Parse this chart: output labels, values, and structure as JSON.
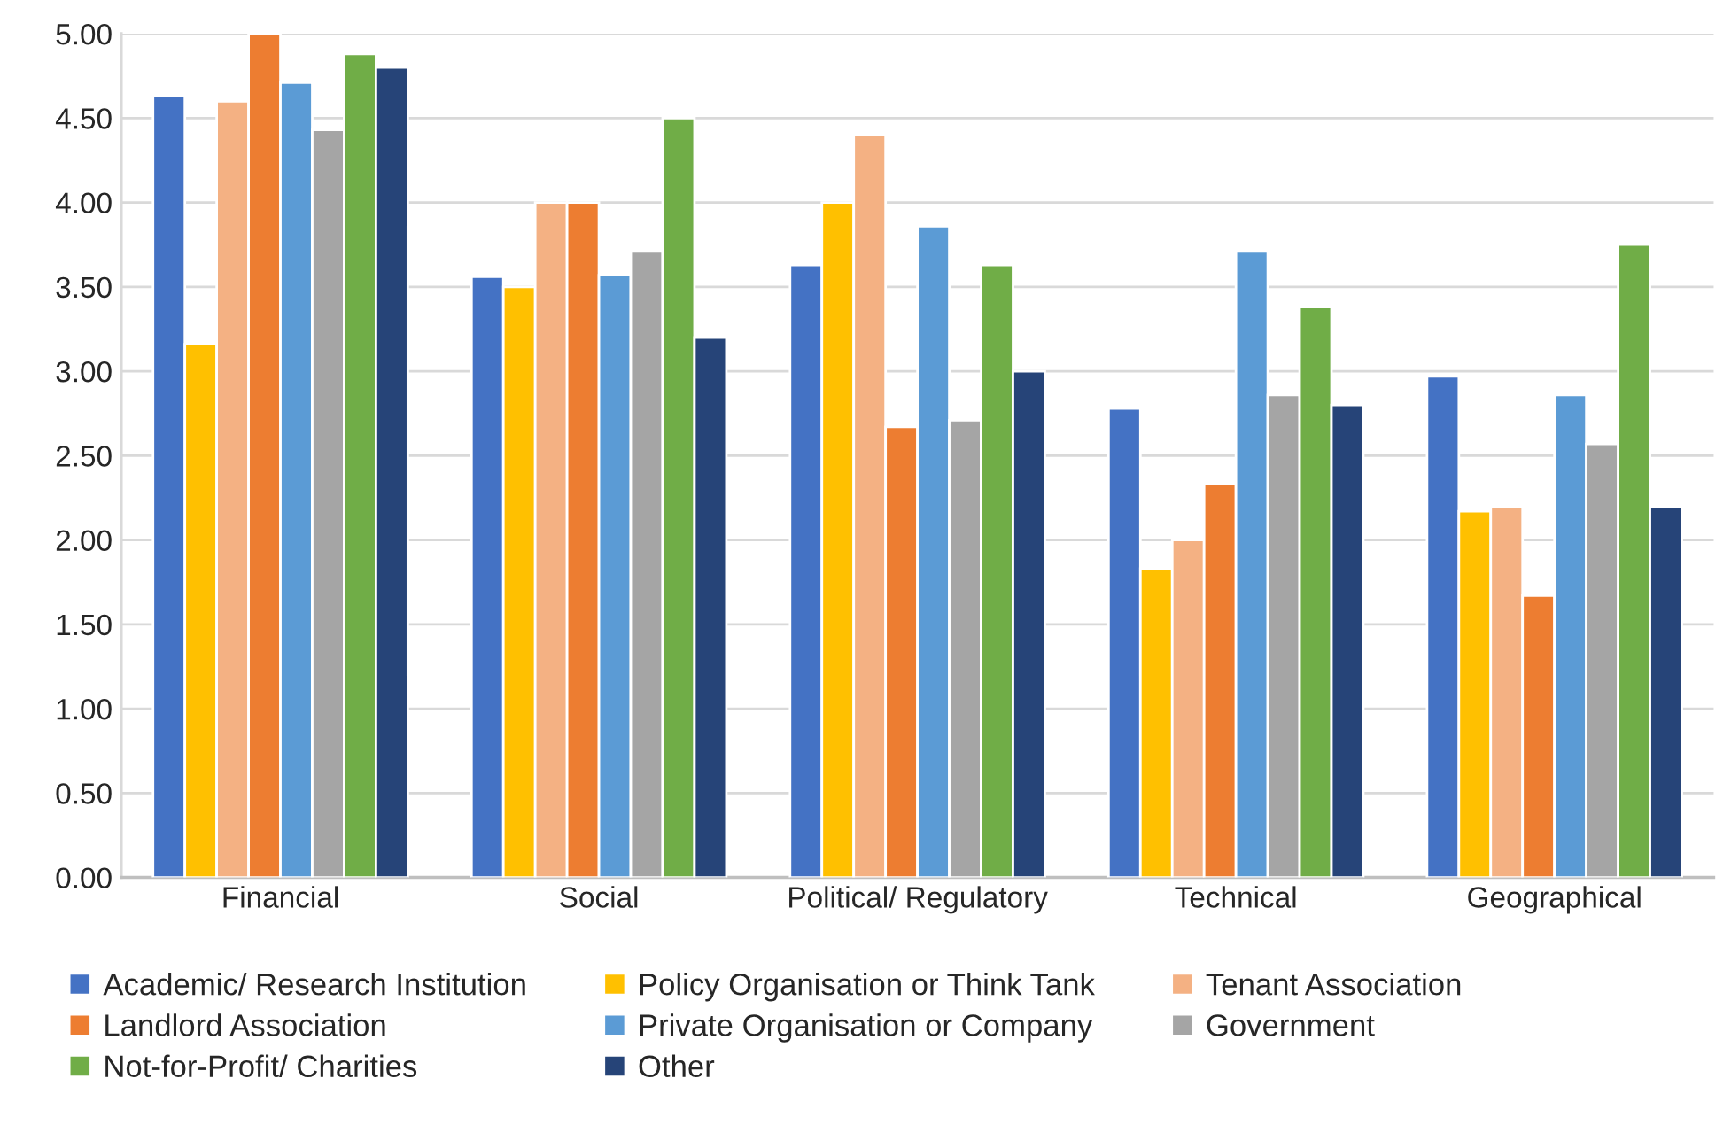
{
  "chart_data": {
    "type": "bar",
    "categories": [
      "Financial",
      "Social",
      "Political/ Regulatory",
      "Technical",
      "Geographical"
    ],
    "series": [
      {
        "name": "Academic/ Research Institution",
        "color": "#4472c4",
        "values": [
          4.63,
          3.56,
          3.63,
          2.78,
          2.97
        ]
      },
      {
        "name": "Policy Organisation or Think Tank",
        "color": "#ffc000",
        "values": [
          3.16,
          3.5,
          4.0,
          1.83,
          2.17
        ]
      },
      {
        "name": "Tenant Association",
        "color": "#f4b183",
        "values": [
          4.6,
          4.0,
          4.4,
          2.0,
          2.2
        ]
      },
      {
        "name": "Landlord Association",
        "color": "#ed7d31",
        "values": [
          5.0,
          4.0,
          2.67,
          2.33,
          1.67
        ]
      },
      {
        "name": "Private Organisation or Company",
        "color": "#5b9bd5",
        "values": [
          4.71,
          3.57,
          3.86,
          3.71,
          2.86
        ]
      },
      {
        "name": "Government",
        "color": "#a5a5a5",
        "values": [
          4.43,
          3.71,
          2.71,
          2.86,
          2.57
        ]
      },
      {
        "name": "Not-for-Profit/ Charities",
        "color": "#70ad47",
        "values": [
          4.88,
          4.5,
          3.63,
          3.38,
          3.75
        ]
      },
      {
        "name": "Other",
        "color": "#264478",
        "values": [
          4.8,
          3.2,
          3.0,
          2.8,
          2.2
        ]
      }
    ],
    "ylim": [
      0,
      5
    ],
    "yticks": [
      {
        "value": 0,
        "label": "0.00"
      },
      {
        "value": 0.5,
        "label": "0.50"
      },
      {
        "value": 1,
        "label": "1.00"
      },
      {
        "value": 1.5,
        "label": "1.50"
      },
      {
        "value": 2,
        "label": "2.00"
      },
      {
        "value": 2.5,
        "label": "2.50"
      },
      {
        "value": 3,
        "label": "3.00"
      },
      {
        "value": 3.5,
        "label": "3.50"
      },
      {
        "value": 4,
        "label": "4.00"
      },
      {
        "value": 4.5,
        "label": "4.50"
      },
      {
        "value": 5,
        "label": "5.00"
      }
    ],
    "grid": "y",
    "legend": "bottom"
  }
}
